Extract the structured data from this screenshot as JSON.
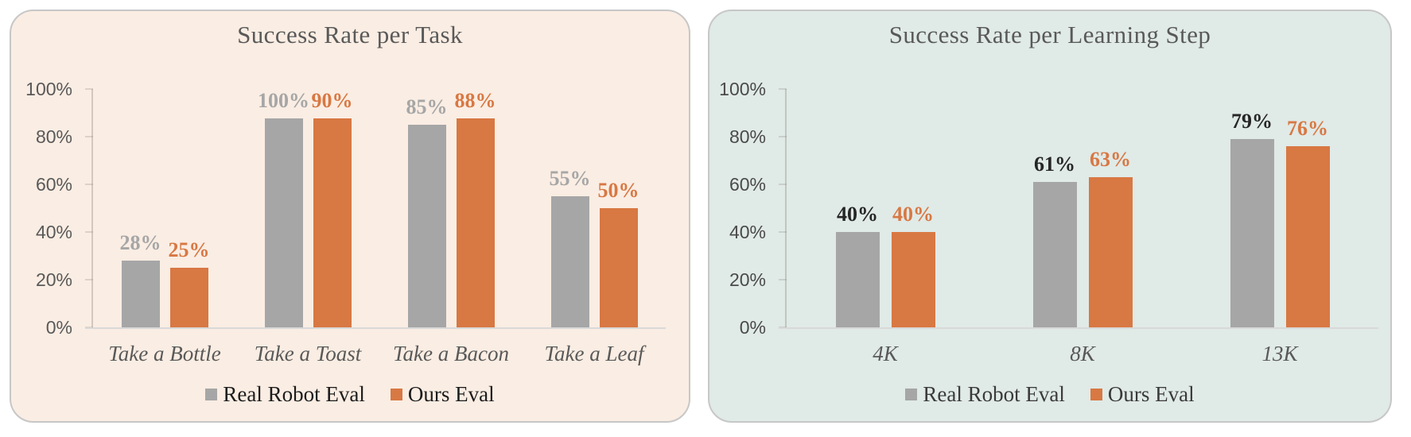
{
  "page": {
    "background": "#ffffff"
  },
  "chart_data": [
    {
      "type": "bar",
      "title": "Success Rate per Task",
      "panel_bg": "#FAEDE3",
      "panel_border": "#C7C7C7",
      "categories": [
        "Take a Bottle",
        "Take a Toast",
        "Take a Bacon",
        "Take a Leaf"
      ],
      "series": [
        {
          "name": "Real Robot Eval",
          "bar_color": "#A6A6A6",
          "label_color": "#A6A6A6",
          "values": [
            28,
            100,
            85,
            55
          ],
          "data_labels": [
            "28%",
            "100%",
            "85%",
            "55%"
          ]
        },
        {
          "name": "Ours Eval",
          "bar_color": "#D87843",
          "label_color": "#D87843",
          "values": [
            25,
            90,
            88,
            50
          ],
          "data_labels": [
            "25%",
            "90%",
            "88%",
            "50%"
          ]
        }
      ],
      "y_axis": {
        "ticks": [
          "100%",
          "80%",
          "60%",
          "40%",
          "20%",
          "0%"
        ],
        "min": 0,
        "max": 100
      },
      "ylim": [
        0,
        100
      ],
      "grid": false,
      "legend_position": "bottom",
      "legend_text_color": "#1c1c1c",
      "axis_text_color": "#595959"
    },
    {
      "type": "bar",
      "title": "Success Rate per Learning Step",
      "panel_bg": "#E0EAE7",
      "panel_border": "#C7C7C7",
      "categories": [
        "4K",
        "8K",
        "13K"
      ],
      "series": [
        {
          "name": "Real Robot Eval",
          "bar_color": "#A6A6A6",
          "label_color": "#262626",
          "values": [
            40,
            61,
            79
          ],
          "data_labels": [
            "40%",
            "61%",
            "79%"
          ]
        },
        {
          "name": "Ours Eval",
          "bar_color": "#D87843",
          "label_color": "#D87843",
          "values": [
            40,
            63,
            76
          ],
          "data_labels": [
            "40%",
            "63%",
            "76%"
          ]
        }
      ],
      "y_axis": {
        "ticks": [
          "100%",
          "80%",
          "60%",
          "40%",
          "20%",
          "0%"
        ],
        "min": 0,
        "max": 100
      },
      "ylim": [
        0,
        100
      ],
      "grid": false,
      "legend_position": "bottom",
      "legend_text_color": "#3a3a3a",
      "axis_text_color": "#4a4a4a"
    }
  ]
}
